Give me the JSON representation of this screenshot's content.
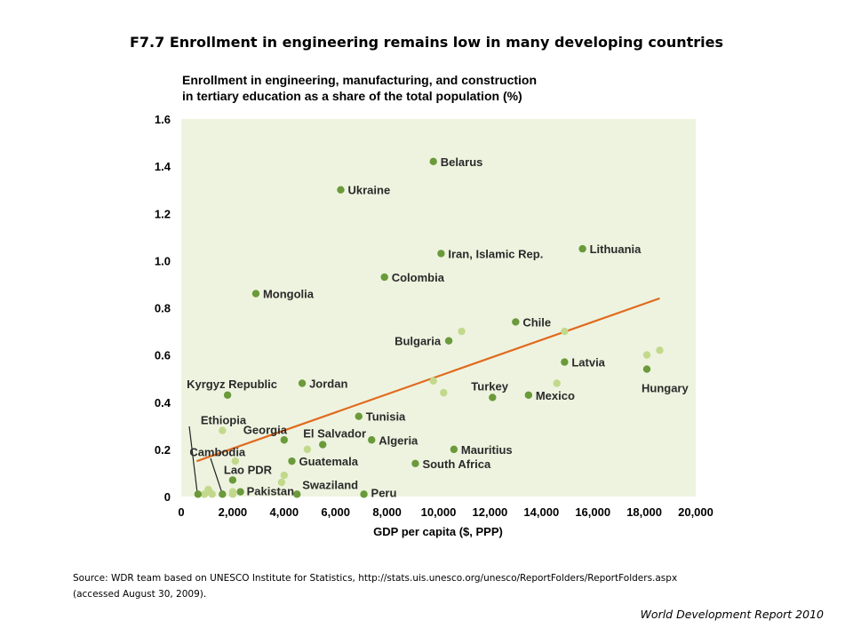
{
  "slide": {
    "title": "F7.7 Enrollment in engineering remains low in many developing countries",
    "source_line1": "Source: WDR team based on UNESCO Institute for Statistics, http://stats.uis.unesco.org/unesco/ReportFolders/ReportFolders.aspx",
    "source_line2": "(accessed August 30, 2009).",
    "credit": "World Development Report 2010"
  },
  "colors": {
    "plot_background": "#eef3df",
    "labeled_point": "#6a9a3a",
    "unlabeled_point": "#c2d98c",
    "trend_line": "#e06a1e"
  },
  "chart_data": {
    "type": "scatter",
    "title_line1": "Enrollment in engineering, manufacturing, and construction",
    "title_line2": "in tertiary education as a share of the total population (%)",
    "xlabel": "GDP per capita ($, PPP)",
    "ylabel": "",
    "xlim": [
      0,
      20000
    ],
    "ylim": [
      0,
      1.6
    ],
    "x_ticks": [
      0,
      2000,
      4000,
      6000,
      8000,
      10000,
      12000,
      14000,
      16000,
      18000,
      20000
    ],
    "x_tick_labels": [
      "0",
      "2,000",
      "4,000",
      "6,000",
      "8,000",
      "10,000",
      "12,000",
      "14,000",
      "16,000",
      "18,000",
      "20,000"
    ],
    "y_ticks": [
      0,
      0.2,
      0.4,
      0.6,
      0.8,
      1.0,
      1.2,
      1.4,
      1.6
    ],
    "y_tick_labels": [
      "0",
      "0.2",
      "0.4",
      "0.6",
      "0.8",
      "1.0",
      "1.2",
      "1.4",
      "1.6"
    ],
    "grid": false,
    "legend": "none",
    "labeled_points": [
      {
        "name": "Belarus",
        "x": 9800,
        "y": 1.42
      },
      {
        "name": "Ukraine",
        "x": 6200,
        "y": 1.3
      },
      {
        "name": "Iran, Islamic Rep.",
        "x": 10100,
        "y": 1.03
      },
      {
        "name": "Lithuania",
        "x": 15600,
        "y": 1.05
      },
      {
        "name": "Colombia",
        "x": 7900,
        "y": 0.93
      },
      {
        "name": "Mongolia",
        "x": 2900,
        "y": 0.86
      },
      {
        "name": "Chile",
        "x": 13000,
        "y": 0.74
      },
      {
        "name": "Bulgaria",
        "x": 10400,
        "y": 0.66
      },
      {
        "name": "Latvia",
        "x": 14900,
        "y": 0.57
      },
      {
        "name": "Hungary",
        "x": 18100,
        "y": 0.54
      },
      {
        "name": "Kyrgyz Republic",
        "x": 1800,
        "y": 0.43
      },
      {
        "name": "Jordan",
        "x": 4700,
        "y": 0.48
      },
      {
        "name": "Turkey",
        "x": 12100,
        "y": 0.42
      },
      {
        "name": "Mexico",
        "x": 13500,
        "y": 0.43
      },
      {
        "name": "Tunisia",
        "x": 6900,
        "y": 0.34
      },
      {
        "name": "Ethiopia",
        "x": 650,
        "y": 0.01
      },
      {
        "name": "Georgia",
        "x": 4000,
        "y": 0.24
      },
      {
        "name": "El Salvador",
        "x": 5500,
        "y": 0.22
      },
      {
        "name": "Algeria",
        "x": 7400,
        "y": 0.24
      },
      {
        "name": "Cambodia",
        "x": 1600,
        "y": 0.01
      },
      {
        "name": "Mauritius",
        "x": 10600,
        "y": 0.2
      },
      {
        "name": "Lao PDR",
        "x": 2000,
        "y": 0.07
      },
      {
        "name": "Guatemala",
        "x": 4300,
        "y": 0.15
      },
      {
        "name": "South Africa",
        "x": 9100,
        "y": 0.14
      },
      {
        "name": "Pakistan",
        "x": 2300,
        "y": 0.02
      },
      {
        "name": "Swaziland",
        "x": 4500,
        "y": 0.01
      },
      {
        "name": "Peru",
        "x": 7100,
        "y": 0.01
      }
    ],
    "unlabeled_points": [
      {
        "x": 900,
        "y": 0.01
      },
      {
        "x": 1100,
        "y": 0.02
      },
      {
        "x": 1200,
        "y": 0.01
      },
      {
        "x": 1050,
        "y": 0.03
      },
      {
        "x": 1600,
        "y": 0.28
      },
      {
        "x": 2100,
        "y": 0.15
      },
      {
        "x": 2000,
        "y": 0.02
      },
      {
        "x": 2000,
        "y": 0.01
      },
      {
        "x": 4000,
        "y": 0.09
      },
      {
        "x": 3900,
        "y": 0.06
      },
      {
        "x": 4900,
        "y": 0.2
      },
      {
        "x": 9800,
        "y": 0.49
      },
      {
        "x": 10200,
        "y": 0.44
      },
      {
        "x": 10900,
        "y": 0.7
      },
      {
        "x": 14600,
        "y": 0.48
      },
      {
        "x": 14900,
        "y": 0.7
      },
      {
        "x": 18100,
        "y": 0.6
      },
      {
        "x": 18600,
        "y": 0.62
      }
    ],
    "trend_line": {
      "x": [
        600,
        18600
      ],
      "y": [
        0.15,
        0.84
      ]
    }
  }
}
